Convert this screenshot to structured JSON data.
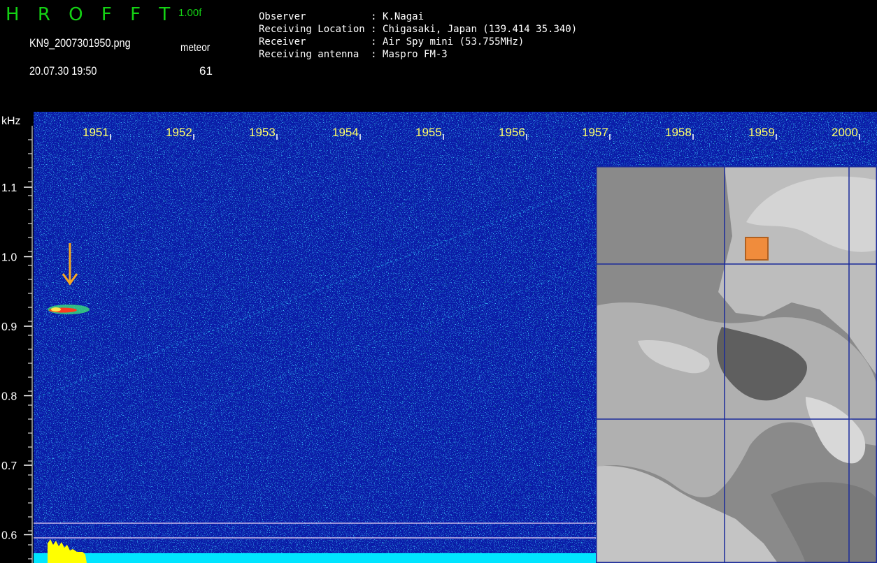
{
  "header": {
    "app_title": "H R O F F T",
    "version": "1.00f",
    "file_name": "KN9_2007301950.png",
    "date_time": "20.07.30 19:50",
    "meteor_label": "meteor",
    "meteor_count": "61"
  },
  "info": [
    {
      "label": "Observer          ",
      "value": ": K.Nagai"
    },
    {
      "label": "Receiving Location",
      "value": ": Chigasaki, Japan (139.414 35.340)"
    },
    {
      "label": "Receiver          ",
      "value": ": Air Spy mini (53.755MHz)"
    },
    {
      "label": "Receiving antenna ",
      "value": ": Maspro FM-3"
    }
  ],
  "spectrogram": {
    "unit_label": "kHz",
    "time_labels": [
      "1951",
      "1952",
      "1953",
      "1954",
      "1955",
      "1956",
      "1957",
      "1958",
      "1959",
      "2000"
    ],
    "freq_labels": [
      "1.1",
      "1.0",
      "0.9",
      "0.8",
      "0.7",
      "0.6"
    ],
    "background_color": "#0a1aa8",
    "echo_color": "#ff3a1f",
    "level_bar_color": "#00e5ff",
    "peak_color": "#ffff00"
  },
  "map": {
    "marker_color": "#f08c3c",
    "grid_color": "#1a2a9a"
  },
  "annotation": {
    "arrow_color": "#f5a623",
    "icon": "down-arrow-icon"
  }
}
